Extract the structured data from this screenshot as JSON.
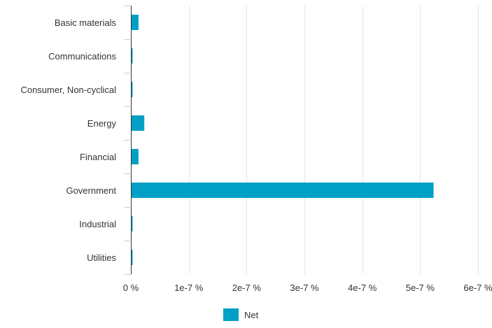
{
  "chart_data": {
    "type": "bar",
    "orientation": "horizontal",
    "categories": [
      "Basic materials",
      "Communications",
      "Consumer, Non-cyclical",
      "Energy",
      "Financial",
      "Government",
      "Industrial",
      "Utilities"
    ],
    "series": [
      {
        "name": "Net",
        "color": "#00a0c6",
        "values": [
          1.2e-08,
          1e-09,
          1e-09,
          2.2e-08,
          1.2e-08,
          5.22e-07,
          1e-09,
          1e-09
        ]
      }
    ],
    "x_ticks": [
      0,
      1e-07,
      2e-07,
      3e-07,
      4e-07,
      5e-07,
      6e-07
    ],
    "x_tick_labels": [
      "0 %",
      "1e-7 %",
      "2e-7 %",
      "3e-7 %",
      "4e-7 %",
      "5e-7 %",
      "6e-7 %"
    ],
    "xlim": [
      0,
      6e-07
    ],
    "title": "",
    "xlabel": "",
    "ylabel": "",
    "grid": "vertical",
    "legend_position": "bottom-center"
  }
}
